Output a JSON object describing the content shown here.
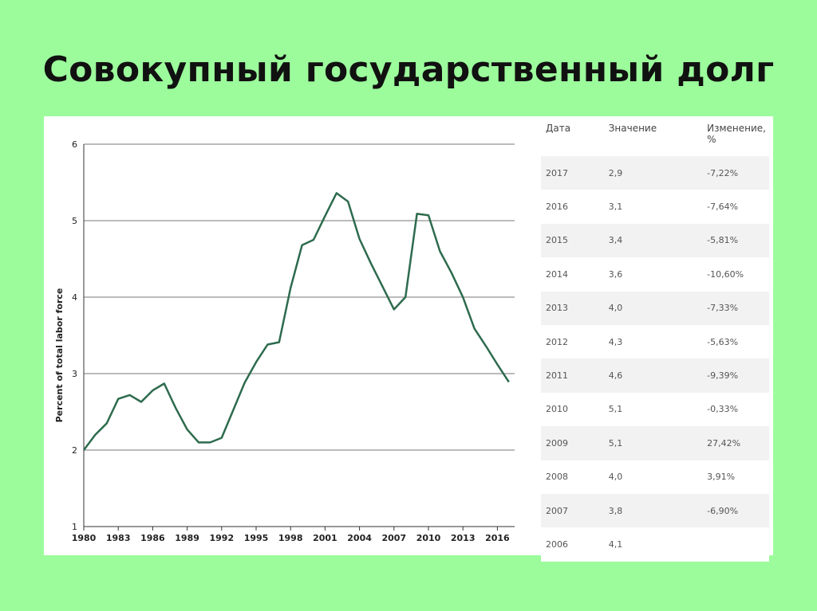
{
  "title": "Совокупный государственный долг",
  "table": {
    "headers": [
      "Дата",
      "Значение",
      "Изменение, %"
    ],
    "rows": [
      [
        "2017",
        "2,9",
        "-7,22%"
      ],
      [
        "2016",
        "3,1",
        "-7,64%"
      ],
      [
        "2015",
        "3,4",
        "-5,81%"
      ],
      [
        "2014",
        "3,6",
        "-10,60%"
      ],
      [
        "2013",
        "4,0",
        "-7,33%"
      ],
      [
        "2012",
        "4,3",
        "-5,63%"
      ],
      [
        "2011",
        "4,6",
        "-9,39%"
      ],
      [
        "2010",
        "5,1",
        "-0,33%"
      ],
      [
        "2009",
        "5,1",
        "27,42%"
      ],
      [
        "2008",
        "4,0",
        "3,91%"
      ],
      [
        "2007",
        "3,8",
        "-6,90%"
      ],
      [
        "2006",
        "4,1",
        ""
      ]
    ]
  },
  "chart_data": {
    "type": "line",
    "title": "",
    "xlabel": "",
    "ylabel": "Percent of total labor force",
    "xlim": [
      1980,
      2017.5
    ],
    "ylim": [
      1,
      6
    ],
    "yticks": [
      1,
      2,
      3,
      4,
      5,
      6
    ],
    "xticks": [
      1980,
      1983,
      1986,
      1989,
      1992,
      1995,
      1998,
      2001,
      2004,
      2007,
      2010,
      2013,
      2016
    ],
    "grid": true,
    "colors": {
      "line": "#2e6b4e",
      "grid": "#777777",
      "axis": "#333333"
    },
    "series": [
      {
        "name": "",
        "x": [
          1980,
          1981,
          1982,
          1983,
          1984,
          1985,
          1986,
          1987,
          1988,
          1989,
          1990,
          1991,
          1992,
          1993,
          1994,
          1995,
          1996,
          1997,
          1998,
          1999,
          2000,
          2001,
          2002,
          2003,
          2004,
          2005,
          2006,
          2007,
          2008,
          2009,
          2010,
          2011,
          2012,
          2013,
          2014,
          2015,
          2016,
          2017
        ],
        "y": [
          2.0,
          2.2,
          2.35,
          2.67,
          2.72,
          2.63,
          2.78,
          2.87,
          2.55,
          2.27,
          2.1,
          2.1,
          2.16,
          2.52,
          2.88,
          3.15,
          3.38,
          3.41,
          4.12,
          4.68,
          4.75,
          5.06,
          5.36,
          5.25,
          4.76,
          4.44,
          4.14,
          3.84,
          4.0,
          5.09,
          5.07,
          4.6,
          4.32,
          4.0,
          3.59,
          3.36,
          3.12,
          2.89
        ]
      }
    ]
  }
}
